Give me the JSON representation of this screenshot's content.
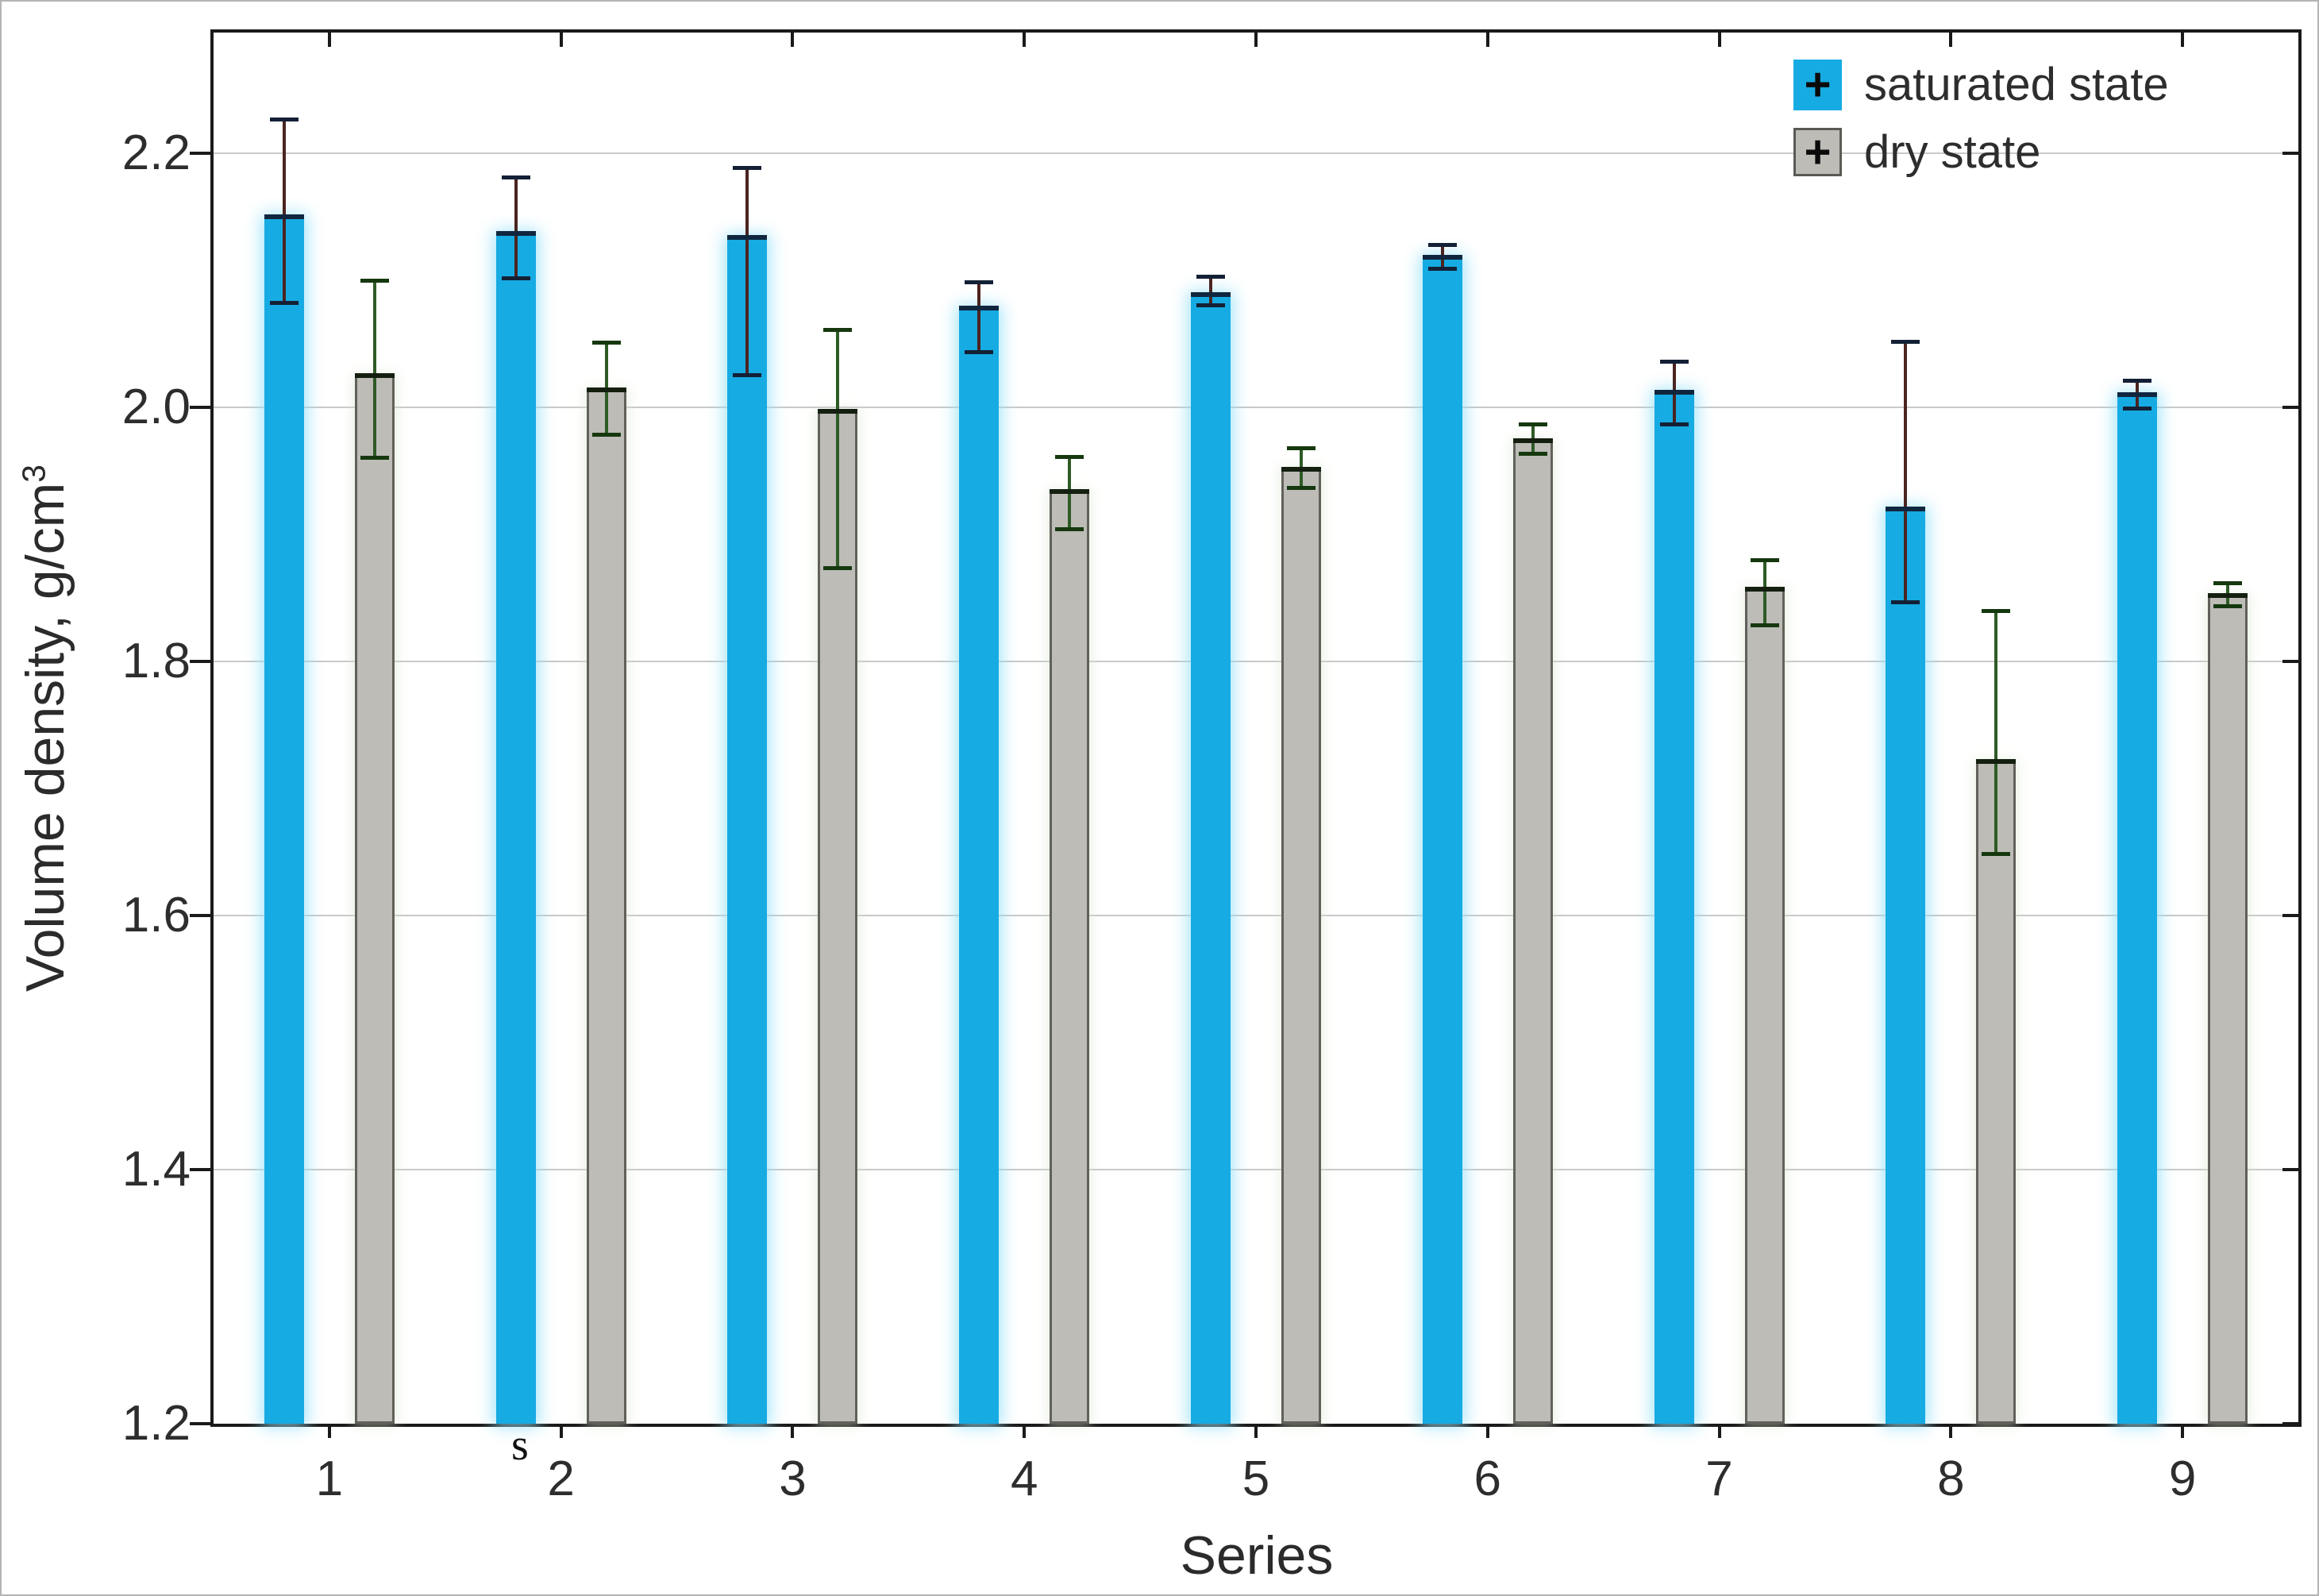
{
  "chart_data": {
    "type": "bar",
    "title": "",
    "xlabel": "Series",
    "ylabel": "Volume density, g/cm³",
    "ylabel_base": "Volume density, g/cm",
    "ylabel_sup": "3",
    "categories": [
      "1",
      "2",
      "3",
      "4",
      "5",
      "6",
      "7",
      "8",
      "9"
    ],
    "yticks": [
      1.2,
      1.4,
      1.6,
      1.8,
      2.0,
      2.2
    ],
    "ylim": [
      1.2,
      2.3
    ],
    "grid": "horizontal-only",
    "legend_position": "top-right-inside",
    "series": [
      {
        "name": "saturated state",
        "values": [
          2.15,
          2.137,
          2.134,
          2.078,
          2.089,
          2.118,
          2.012,
          1.92,
          2.01
        ],
        "err_high": [
          2.227,
          2.181,
          2.189,
          2.099,
          2.103,
          2.128,
          2.036,
          2.052,
          2.021
        ],
        "err_low": [
          2.082,
          2.101,
          2.025,
          2.043,
          2.08,
          2.109,
          1.986,
          1.846,
          1.999
        ]
      },
      {
        "name": "dry state",
        "values": [
          2.025,
          2.014,
          1.997,
          1.934,
          1.951,
          1.974,
          1.857,
          1.721,
          1.852
        ],
        "err_high": [
          2.1,
          2.051,
          2.061,
          1.961,
          1.968,
          1.987,
          1.88,
          1.84,
          1.862
        ],
        "err_low": [
          1.96,
          1.978,
          1.873,
          1.904,
          1.936,
          1.963,
          1.828,
          1.648,
          1.843
        ]
      }
    ]
  },
  "legend": {
    "items": [
      {
        "label": "saturated state",
        "marker": "+"
      },
      {
        "label": "dry state",
        "marker": "+"
      }
    ]
  },
  "annotations": {
    "stray_letter": "s"
  },
  "colors": {
    "saturated_bar": "#16abe3",
    "dry_bar": "#bdbcb7",
    "dry_bar_border": "#61615a",
    "saturated_err_line": "#4b2420",
    "saturated_err_cap": "#132035",
    "saturated_mean": "#10263f",
    "dry_err_line": "#2e5b25",
    "dry_err_cap": "#16380f",
    "dry_mean": "#141f10",
    "grid": "#c9c9c9",
    "axis": "#1a1a1a",
    "text": "#2d2d2d",
    "legend_plus": "#0a0a0a"
  }
}
